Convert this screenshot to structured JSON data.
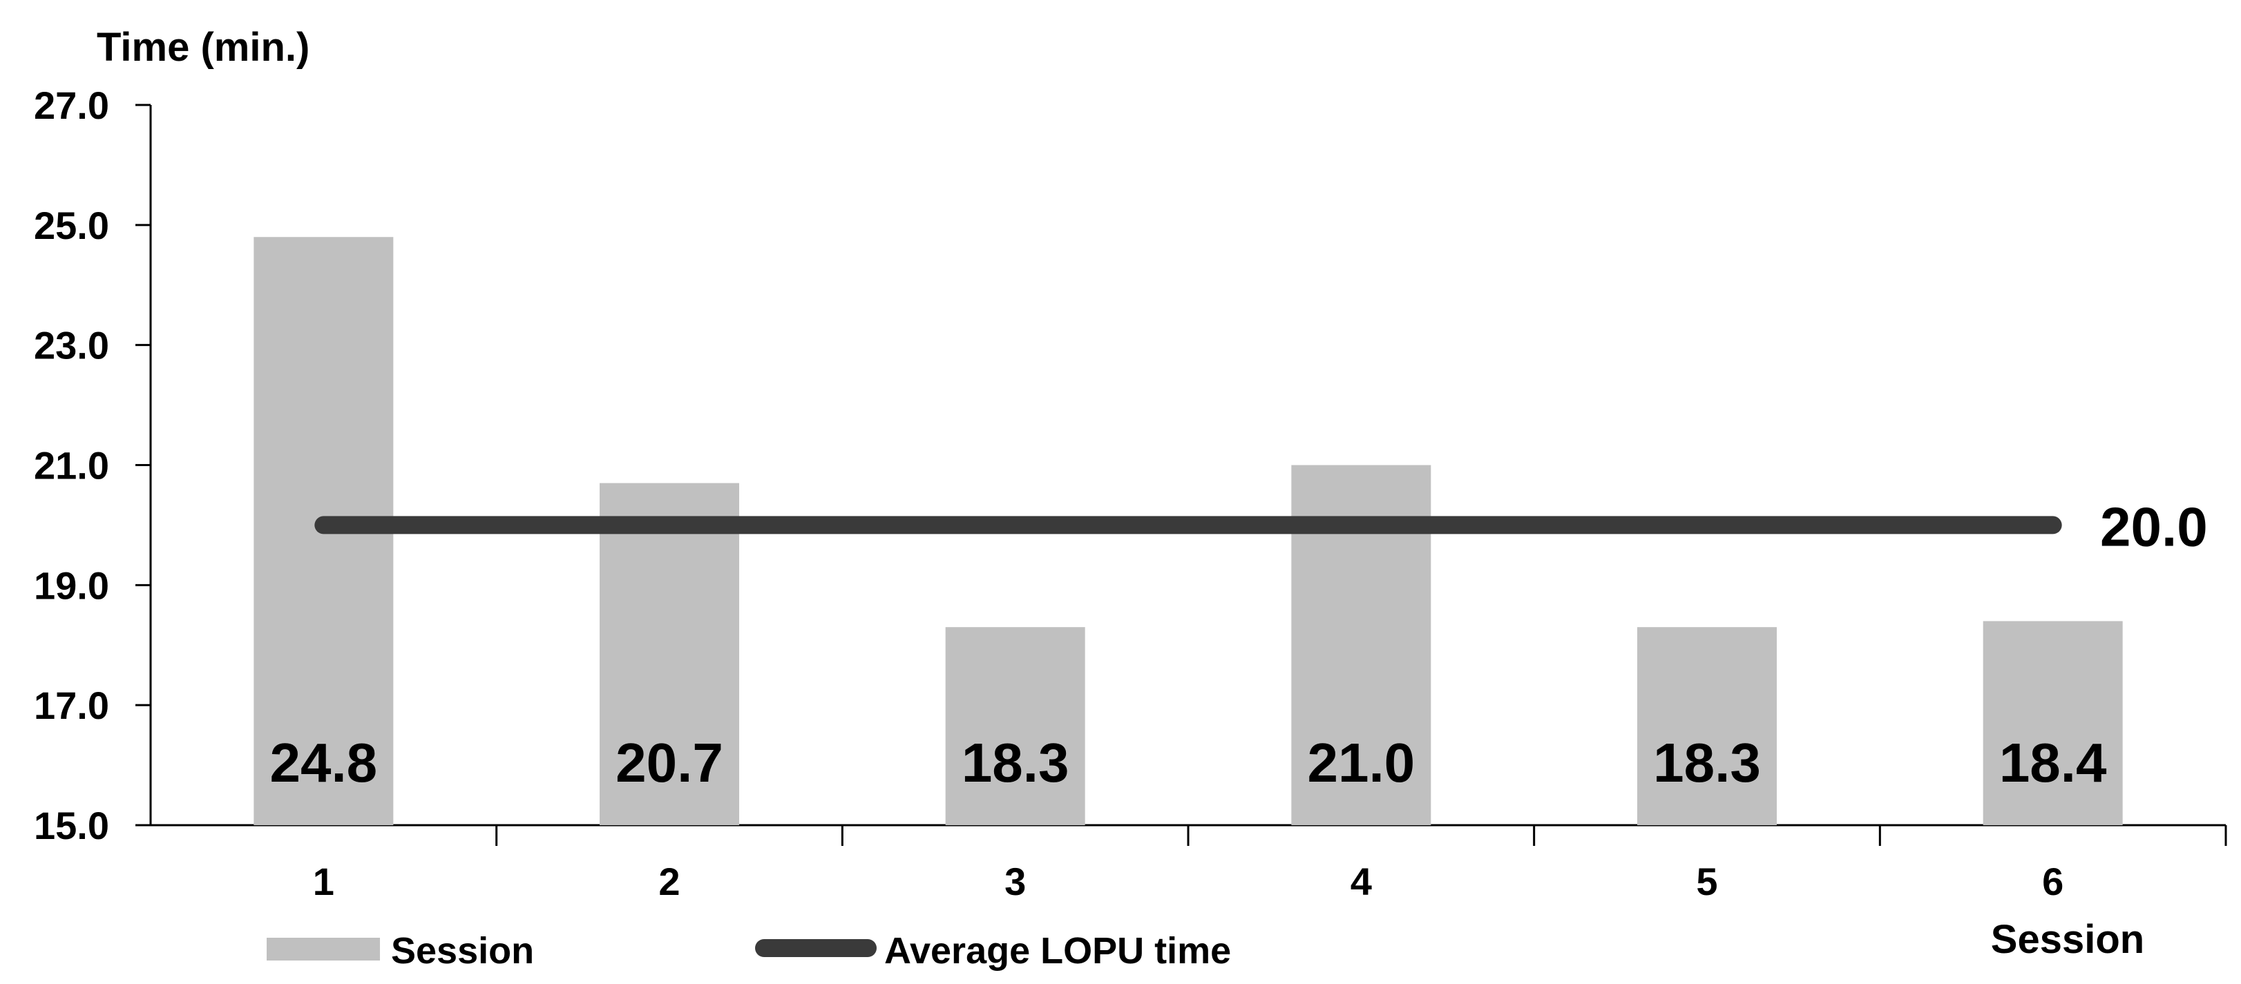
{
  "chart_data": {
    "type": "bar",
    "ylabel": "Time (min.)",
    "xlabel": "Session",
    "ylim": [
      15.0,
      27.0
    ],
    "yticks": [
      "27.0",
      "25.0",
      "23.0",
      "21.0",
      "19.0",
      "17.0",
      "15.0"
    ],
    "categories": [
      "1",
      "2",
      "3",
      "4",
      "5",
      "6"
    ],
    "series": [
      {
        "name": "Session",
        "type": "bar",
        "values": [
          24.8,
          20.7,
          18.3,
          21.0,
          18.3,
          18.4
        ],
        "labels": [
          "24.8",
          "20.7",
          "18.3",
          "21.0",
          "18.3",
          "18.4"
        ],
        "color": "#c0c0c0"
      },
      {
        "name": "Average LOPU time",
        "type": "line",
        "value": 20.0,
        "label": "20.0",
        "color": "#3a3a3a"
      }
    ],
    "legend_position": "bottom",
    "grid": false
  }
}
